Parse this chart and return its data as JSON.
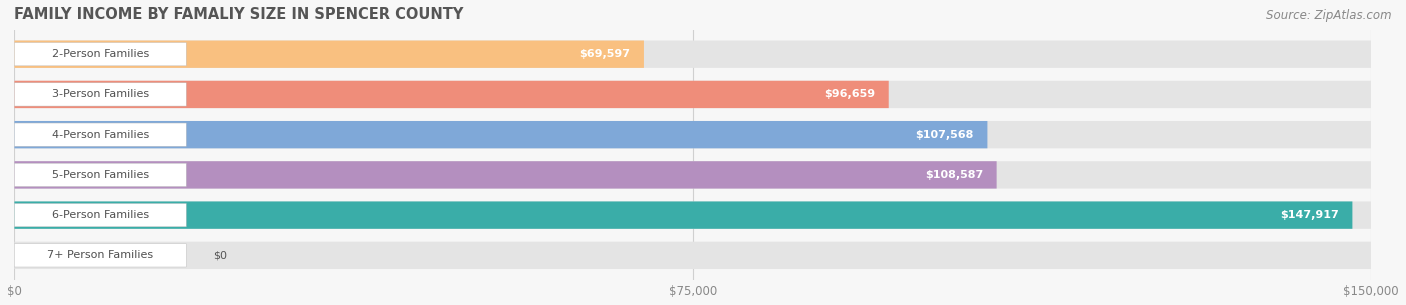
{
  "title": "FAMILY INCOME BY FAMALIY SIZE IN SPENCER COUNTY",
  "source": "Source: ZipAtlas.com",
  "categories": [
    "2-Person Families",
    "3-Person Families",
    "4-Person Families",
    "5-Person Families",
    "6-Person Families",
    "7+ Person Families"
  ],
  "values": [
    69597,
    96659,
    107568,
    108587,
    147917,
    0
  ],
  "bar_colors": [
    "#F9C080",
    "#EF8D7A",
    "#7FA8D8",
    "#B48FBF",
    "#3AADA8",
    "#C5C5E8"
  ],
  "x_max": 150000,
  "x_ticks": [
    0,
    75000,
    150000
  ],
  "x_tick_labels": [
    "$0",
    "$75,000",
    "$150,000"
  ],
  "background_color": "#F7F7F7",
  "bar_bg_color": "#E4E4E4",
  "title_fontsize": 10.5,
  "source_fontsize": 8.5,
  "label_fontsize": 8.0,
  "value_fontsize": 8.0,
  "value_outside_color": "#555555",
  "value_inside_color": "#FFFFFF"
}
